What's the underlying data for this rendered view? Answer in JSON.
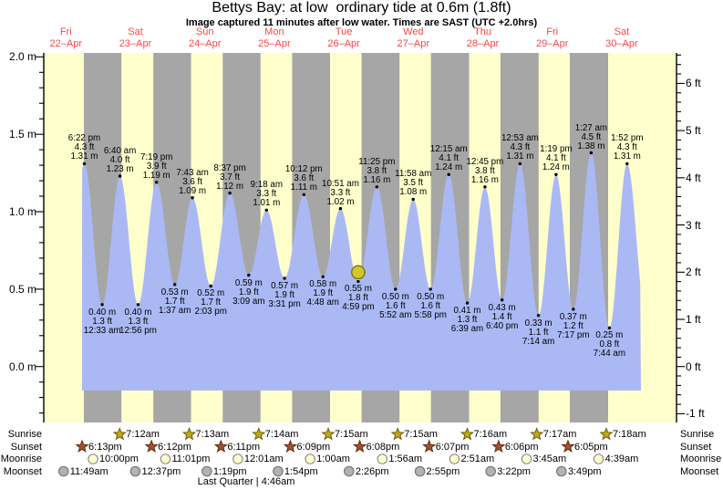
{
  "title": "Bettys Bay: at low  ordinary tide at 0.6m (1.8ft)",
  "subtitle": "Image captured 11 minutes after low water. Times are SAST (UTC +2.0hrs)",
  "moon_phase": "Last Quarter | 4:46am",
  "colors": {
    "day_band": "#ffffcc",
    "night_band": "#a6a6a6",
    "tide_fill": "#aab9f4",
    "axis": "#000000",
    "date_label_red": "#ff4444",
    "now_marker_fill": "#d2c62c",
    "now_marker_stroke": "#7d7410",
    "sunrise_star": "#c0aa14",
    "sunset_star": "#a5512b",
    "moonrise_circle": "#ffffcc",
    "moonset_circle": "#b2b2b2"
  },
  "chart_data": {
    "type": "area",
    "title": "Bettys Bay: at low  ordinary tide at 0.6m (1.8ft)",
    "series_name": "Tide height",
    "ylabel_left": "meters",
    "ylabel_right": "feet",
    "ylim_m": [
      -0.36,
      2.03
    ],
    "grid": false,
    "night_shading": "sunset-to-sunrise gray bands, daylight pale yellow",
    "x_days": [
      {
        "name": "Fri",
        "date": "22–Apr"
      },
      {
        "name": "Sat",
        "date": "23–Apr"
      },
      {
        "name": "Sun",
        "date": "24–Apr"
      },
      {
        "name": "Mon",
        "date": "25–Apr"
      },
      {
        "name": "Tue",
        "date": "26–Apr"
      },
      {
        "name": "Wed",
        "date": "27–Apr"
      },
      {
        "name": "Thu",
        "date": "28–Apr"
      },
      {
        "name": "Fri",
        "date": "29–Apr"
      },
      {
        "name": "Sat",
        "date": "30–Apr"
      }
    ],
    "left_ticks": [
      {
        "label": "2.0 m",
        "value": 2.0
      },
      {
        "label": "1.5 m",
        "value": 1.5
      },
      {
        "label": "1.0 m",
        "value": 1.0
      },
      {
        "label": "0.5 m",
        "value": 0.5
      },
      {
        "label": "0.0 m",
        "value": 0.0
      }
    ],
    "right_ticks": [
      {
        "label": "6 ft",
        "value": 6
      },
      {
        "label": "5 ft",
        "value": 5
      },
      {
        "label": "4 ft",
        "value": 4
      },
      {
        "label": "3 ft",
        "value": 3
      },
      {
        "label": "2 ft",
        "value": 2
      },
      {
        "label": "1 ft",
        "value": 1
      },
      {
        "label": "0 ft",
        "value": 0
      },
      {
        "label": "-1 ft",
        "value": -1
      }
    ],
    "high_tides": [
      {
        "date": "22–Apr",
        "time": "6:22 pm",
        "height_ft": 4.3,
        "height_m": 1.31,
        "ft_label": "4.3 ft",
        "m_label": "1.31 m"
      },
      {
        "date": "23–Apr",
        "time": "6:40 am",
        "height_ft": 4.0,
        "height_m": 1.23,
        "ft_label": "4.0 ft",
        "m_label": "1.23 m"
      },
      {
        "date": "23–Apr",
        "time": "7:19 pm",
        "height_ft": 3.9,
        "height_m": 1.19,
        "ft_label": "3.9 ft",
        "m_label": "1.19 m"
      },
      {
        "date": "24–Apr",
        "time": "7:43 am",
        "height_ft": 3.6,
        "height_m": 1.09,
        "ft_label": "3.6 ft",
        "m_label": "1.09 m"
      },
      {
        "date": "24–Apr",
        "time": "8:37 pm",
        "height_ft": 3.7,
        "height_m": 1.12,
        "ft_label": "3.7 ft",
        "m_label": "1.12 m"
      },
      {
        "date": "25–Apr",
        "time": "9:18 am",
        "height_ft": 3.3,
        "height_m": 1.01,
        "ft_label": "3.3 ft",
        "m_label": "1.01 m"
      },
      {
        "date": "25–Apr",
        "time": "10:12 pm",
        "height_ft": 3.6,
        "height_m": 1.11,
        "ft_label": "3.6 ft",
        "m_label": "1.11 m"
      },
      {
        "date": "26–Apr",
        "time": "10:51 am",
        "height_ft": 3.3,
        "height_m": 1.02,
        "ft_label": "3.3 ft",
        "m_label": "1.02 m"
      },
      {
        "date": "26–Apr",
        "time": "11:25 pm",
        "height_ft": 3.8,
        "height_m": 1.16,
        "ft_label": "3.8 ft",
        "m_label": "1.16 m"
      },
      {
        "date": "27–Apr",
        "time": "11:58 am",
        "height_ft": 3.5,
        "height_m": 1.08,
        "ft_label": "3.5 ft",
        "m_label": "1.08 m"
      },
      {
        "date": "28–Apr",
        "time": "12:15 am",
        "height_ft": 4.1,
        "height_m": 1.24,
        "ft_label": "4.1 ft",
        "m_label": "1.24 m"
      },
      {
        "date": "28–Apr",
        "time": "12:45 pm",
        "height_ft": 3.8,
        "height_m": 1.16,
        "ft_label": "3.8 ft",
        "m_label": "1.16 m"
      },
      {
        "date": "29–Apr",
        "time": "12:53 am",
        "height_ft": 4.3,
        "height_m": 1.31,
        "ft_label": "4.3 ft",
        "m_label": "1.31 m"
      },
      {
        "date": "29–Apr",
        "time": "1:19 pm",
        "height_ft": 4.1,
        "height_m": 1.24,
        "ft_label": "4.1 ft",
        "m_label": "1.24 m"
      },
      {
        "date": "30–Apr",
        "time": "1:27 am",
        "height_ft": 4.5,
        "height_m": 1.38,
        "ft_label": "4.5 ft",
        "m_label": "1.38 m"
      },
      {
        "date": "30–Apr",
        "time": "1:52 pm",
        "height_ft": 4.3,
        "height_m": 1.31,
        "ft_label": "4.3 ft",
        "m_label": "1.31 m"
      }
    ],
    "low_tides": [
      {
        "date": "23–Apr",
        "time": "12:33 am",
        "height_ft": 1.3,
        "height_m": 0.4,
        "ft_label": "1.3 ft",
        "m_label": "0.40 m"
      },
      {
        "date": "23–Apr",
        "time": "12:56 pm",
        "height_ft": 1.3,
        "height_m": 0.4,
        "ft_label": "1.3 ft",
        "m_label": "0.40 m"
      },
      {
        "date": "24–Apr",
        "time": "1:37 am",
        "height_ft": 1.7,
        "height_m": 0.53,
        "ft_label": "1.7 ft",
        "m_label": "0.53 m"
      },
      {
        "date": "24–Apr",
        "time": "2:03 pm",
        "height_ft": 1.7,
        "height_m": 0.52,
        "ft_label": "1.7 ft",
        "m_label": "0.52 m"
      },
      {
        "date": "25–Apr",
        "time": "3:09 am",
        "height_ft": 1.9,
        "height_m": 0.59,
        "ft_label": "1.9 ft",
        "m_label": "0.59 m"
      },
      {
        "date": "25–Apr",
        "time": "3:31 pm",
        "height_ft": 1.9,
        "height_m": 0.57,
        "ft_label": "1.9 ft",
        "m_label": "0.57 m"
      },
      {
        "date": "26–Apr",
        "time": "4:48 am",
        "height_ft": 1.9,
        "height_m": 0.58,
        "ft_label": "1.9 ft",
        "m_label": "0.58 m"
      },
      {
        "date": "26–Apr",
        "time": "4:59 pm",
        "height_ft": 1.8,
        "height_m": 0.55,
        "ft_label": "1.8 ft",
        "m_label": "0.55 m"
      },
      {
        "date": "27–Apr",
        "time": "5:52 am",
        "height_ft": 1.6,
        "height_m": 0.5,
        "ft_label": "1.6 ft",
        "m_label": "0.50 m"
      },
      {
        "date": "27–Apr",
        "time": "5:58 pm",
        "height_ft": 1.6,
        "height_m": 0.5,
        "ft_label": "1.6 ft",
        "m_label": "0.50 m"
      },
      {
        "date": "28–Apr",
        "time": "6:39 am",
        "height_ft": 1.3,
        "height_m": 0.41,
        "ft_label": "1.3 ft",
        "m_label": "0.41 m"
      },
      {
        "date": "28–Apr",
        "time": "6:40 pm",
        "height_ft": 1.4,
        "height_m": 0.43,
        "ft_label": "1.4 ft",
        "m_label": "0.43 m"
      },
      {
        "date": "29–Apr",
        "time": "7:14 am",
        "height_ft": 1.1,
        "height_m": 0.33,
        "ft_label": "1.1 ft",
        "m_label": "0.33 m"
      },
      {
        "date": "29–Apr",
        "time": "7:17 pm",
        "height_ft": 1.2,
        "height_m": 0.37,
        "ft_label": "1.2 ft",
        "m_label": "0.37 m"
      },
      {
        "date": "30–Apr",
        "time": "7:44 am",
        "height_ft": 0.8,
        "height_m": 0.25,
        "ft_label": "0.8 ft",
        "m_label": "0.25 m"
      }
    ],
    "now_marker": {
      "at_low_index": 7,
      "shape": "yellow-circle"
    }
  },
  "astro": {
    "rows": [
      {
        "label": "Sunrise",
        "icon": "sunrise-star-icon",
        "times": [
          {
            "date": "23–Apr",
            "time": "7:12am"
          },
          {
            "date": "24–Apr",
            "time": "7:13am"
          },
          {
            "date": "25–Apr",
            "time": "7:14am"
          },
          {
            "date": "26–Apr",
            "time": "7:15am"
          },
          {
            "date": "27–Apr",
            "time": "7:15am"
          },
          {
            "date": "28–Apr",
            "time": "7:16am"
          },
          {
            "date": "29–Apr",
            "time": "7:17am"
          },
          {
            "date": "30–Apr",
            "time": "7:18am"
          }
        ]
      },
      {
        "label": "Sunset",
        "icon": "sunset-star-icon",
        "times": [
          {
            "date": "22–Apr",
            "time": "6:13pm"
          },
          {
            "date": "23–Apr",
            "time": "6:12pm"
          },
          {
            "date": "24–Apr",
            "time": "6:11pm"
          },
          {
            "date": "25–Apr",
            "time": "6:09pm"
          },
          {
            "date": "26–Apr",
            "time": "6:08pm"
          },
          {
            "date": "27–Apr",
            "time": "6:07pm"
          },
          {
            "date": "28–Apr",
            "time": "6:06pm"
          },
          {
            "date": "29–Apr",
            "time": "6:05pm"
          }
        ]
      },
      {
        "label": "Moonrise",
        "icon": "moonrise-circle-icon",
        "times": [
          {
            "date": "22–Apr",
            "time": "10:00pm"
          },
          {
            "date": "23–Apr",
            "time": "11:01pm"
          },
          {
            "date": "25–Apr",
            "time": "12:01am"
          },
          {
            "date": "26–Apr",
            "time": "1:00am"
          },
          {
            "date": "27–Apr",
            "time": "1:56am"
          },
          {
            "date": "28–Apr",
            "time": "2:51am"
          },
          {
            "date": "29–Apr",
            "time": "3:45am"
          },
          {
            "date": "30–Apr",
            "time": "4:39am"
          }
        ]
      },
      {
        "label": "Moonset",
        "icon": "moonset-circle-icon",
        "times": [
          {
            "date": "22–Apr",
            "time": "11:49am"
          },
          {
            "date": "23–Apr",
            "time": "12:37pm"
          },
          {
            "date": "24–Apr",
            "time": "1:19pm"
          },
          {
            "date": "25–Apr",
            "time": "1:54pm"
          },
          {
            "date": "26–Apr",
            "time": "2:26pm"
          },
          {
            "date": "27–Apr",
            "time": "2:55pm"
          },
          {
            "date": "28–Apr",
            "time": "3:22pm"
          },
          {
            "date": "29–Apr",
            "time": "3:49pm"
          }
        ]
      }
    ]
  }
}
